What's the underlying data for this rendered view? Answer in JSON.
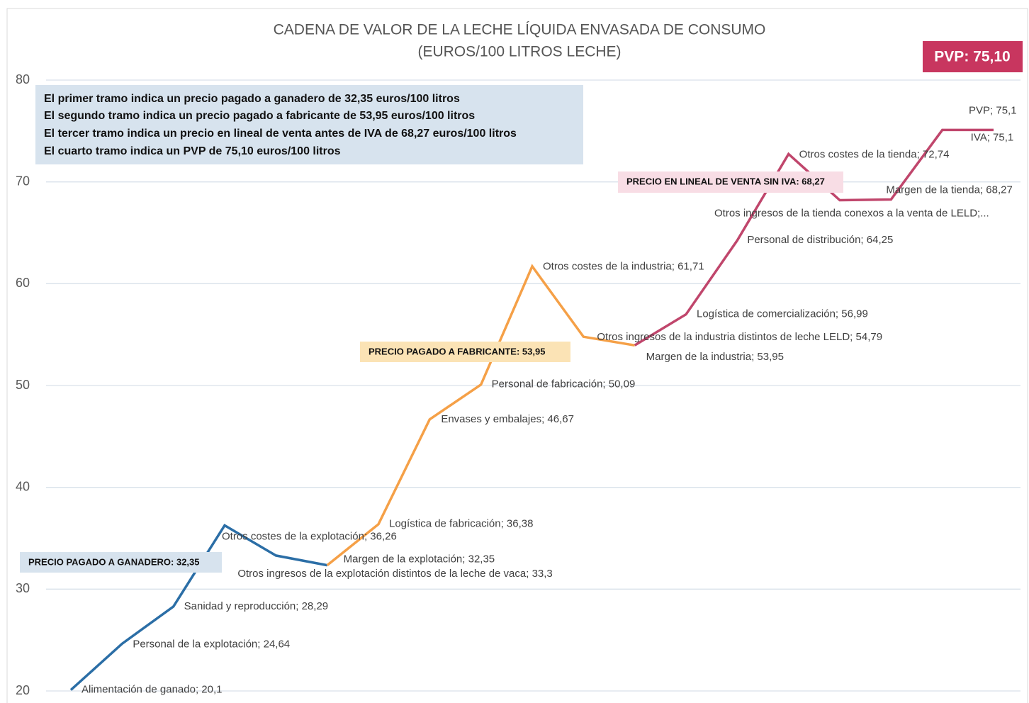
{
  "chart_data": {
    "type": "line",
    "title": "CADENA DE VALOR DE LA LECHE LÍQUIDA ENVASADA DE CONSUMO",
    "subtitle": "(EUROS/100 LITROS LECHE)",
    "ylim": [
      20,
      80
    ],
    "yticks": [
      20,
      30,
      40,
      50,
      60,
      70,
      80
    ],
    "grid": true,
    "series": [
      {
        "color": "#2b6ea6",
        "values": [
          20.1,
          24.64,
          28.29,
          36.26,
          33.3,
          32.35,
          null,
          null,
          null,
          null,
          null,
          null,
          null,
          null,
          null,
          null,
          null,
          null,
          null
        ],
        "value_labels": [
          "Alimentación de ganado; 20,1",
          "Personal de la explotación; 24,64",
          "Sanidad y reproducción; 28,29",
          "Otros costes de la explotación; 36,26",
          "Otros ingresos de la explotación distintos de la leche de vaca; 33,3",
          "Margen de la explotación; 32,35",
          null,
          null,
          null,
          null,
          null,
          null,
          null,
          null,
          null,
          null,
          null,
          null,
          null
        ]
      },
      {
        "color": "#f5a047",
        "values": [
          null,
          null,
          null,
          null,
          null,
          32.35,
          36.38,
          46.67,
          50.09,
          61.71,
          54.79,
          53.95,
          null,
          null,
          null,
          null,
          null,
          null,
          null
        ],
        "value_labels": [
          null,
          null,
          null,
          null,
          null,
          null,
          "Logística de fabricación; 36,38",
          "Envases y embalajes; 46,67",
          "Personal de fabricación; 50,09",
          "Otros costes de la industria; 61,71",
          "Otros ingresos de la industria distintos de leche LELD; 54,79",
          "Margen de la industria; 53,95",
          null,
          null,
          null,
          null,
          null,
          null,
          null
        ]
      },
      {
        "color": "#c0466c",
        "values": [
          null,
          null,
          null,
          null,
          null,
          null,
          null,
          null,
          null,
          null,
          null,
          53.95,
          56.99,
          64.25,
          72.74,
          68.2,
          68.27,
          75.1,
          75.1
        ],
        "value_labels": [
          null,
          null,
          null,
          null,
          null,
          null,
          null,
          null,
          null,
          null,
          null,
          null,
          "Logística de comercialización; 56,99",
          "Personal de distribución; 64,25",
          "Otros costes de la tienda; 72,74",
          "Otros ingresos de la tienda conexos a la venta de LELD;...",
          "Margen de la tienda; 68,27",
          "IVA; 75,1",
          "PVP; 75,1"
        ]
      }
    ],
    "info_box": [
      "El primer tramo indica un precio pagado a ganadero de 32,35 euros/100 litros",
      "El segundo tramo indica un precio pagado a fabricante de 53,95 euros/100 litros",
      "El tercer tramo indica un precio en lineal de venta antes de IVA de 68,27 euros/100 litros",
      "El cuarto tramo indica un PVP de 75,10 euros/100 litros"
    ],
    "callouts": [
      "PRECIO PAGADO A GANADERO: 32,35",
      "PRECIO PAGADO A FABRICANTE: 53,95",
      "PRECIO EN LINEAL DE VENTA SIN IVA: 68,27",
      "PVP: 75,10"
    ]
  }
}
